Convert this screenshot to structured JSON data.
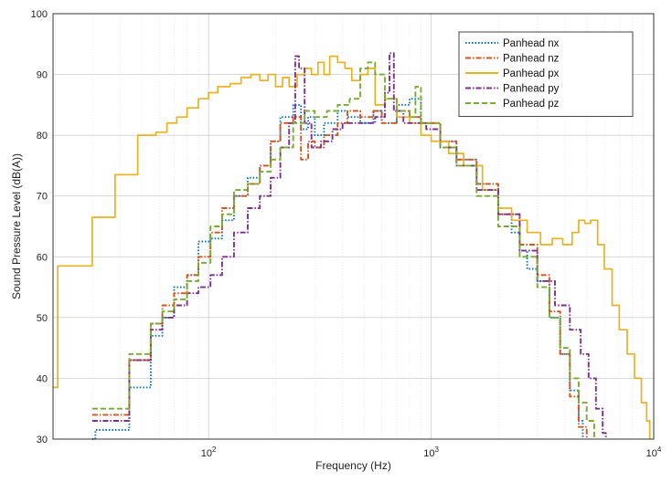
{
  "chart_data": {
    "type": "line",
    "title": "",
    "xlabel": "Frequency (Hz)",
    "ylabel": "Sound Pressure Level (dB(A))",
    "xscale": "log",
    "xlim": [
      20,
      10000
    ],
    "ylim": [
      30,
      100
    ],
    "grid": true,
    "legend_position": "top-right",
    "x_ticks": [
      {
        "value": 100,
        "base": "10",
        "exp": "2"
      },
      {
        "value": 1000,
        "base": "10",
        "exp": "3"
      },
      {
        "value": 10000,
        "base": "10",
        "exp": "4"
      }
    ],
    "y_ticks": [
      30,
      40,
      50,
      60,
      70,
      80,
      90,
      100
    ],
    "series": [
      {
        "name": "Panhead nx",
        "color": "#0072BD",
        "dash": "1.5,2",
        "points": [
          [
            30,
            30
          ],
          [
            31,
            31.5
          ],
          [
            44,
            38.5
          ],
          [
            55,
            47
          ],
          [
            62,
            50
          ],
          [
            70,
            55
          ],
          [
            80,
            57
          ],
          [
            90,
            62.5
          ],
          [
            102,
            63
          ],
          [
            115,
            66
          ],
          [
            130,
            70
          ],
          [
            150,
            73
          ],
          [
            170,
            75
          ],
          [
            190,
            79
          ],
          [
            210,
            83
          ],
          [
            240,
            85
          ],
          [
            260,
            81
          ],
          [
            280,
            83
          ],
          [
            300,
            80
          ],
          [
            330,
            82
          ],
          [
            380,
            84
          ],
          [
            420,
            83
          ],
          [
            480,
            82
          ],
          [
            550,
            84
          ],
          [
            600,
            82
          ],
          [
            700,
            85
          ],
          [
            800,
            86
          ],
          [
            900,
            82
          ],
          [
            1100,
            79
          ],
          [
            1300,
            76
          ],
          [
            1600,
            72
          ],
          [
            2000,
            67
          ],
          [
            2300,
            64
          ],
          [
            2500,
            61
          ],
          [
            2700,
            58
          ],
          [
            3000,
            56
          ],
          [
            3400,
            50
          ],
          [
            3800,
            44
          ],
          [
            4200,
            38
          ],
          [
            4600,
            33
          ],
          [
            4800,
            30
          ]
        ]
      },
      {
        "name": "Panhead nz",
        "color": "#D95319",
        "dash": "6,2,1.5,2",
        "points": [
          [
            30,
            34
          ],
          [
            31,
            34
          ],
          [
            44,
            43
          ],
          [
            55,
            49
          ],
          [
            62,
            52
          ],
          [
            70,
            54
          ],
          [
            80,
            57
          ],
          [
            90,
            60
          ],
          [
            102,
            64
          ],
          [
            115,
            68
          ],
          [
            130,
            70
          ],
          [
            150,
            72
          ],
          [
            170,
            75
          ],
          [
            190,
            79
          ],
          [
            210,
            82
          ],
          [
            240,
            83
          ],
          [
            260,
            76
          ],
          [
            280,
            79
          ],
          [
            300,
            78
          ],
          [
            330,
            80
          ],
          [
            380,
            82
          ],
          [
            420,
            84
          ],
          [
            480,
            83
          ],
          [
            550,
            84
          ],
          [
            600,
            82
          ],
          [
            700,
            84
          ],
          [
            800,
            83
          ],
          [
            900,
            82
          ],
          [
            1100,
            79
          ],
          [
            1300,
            76
          ],
          [
            1600,
            72
          ],
          [
            2000,
            67
          ],
          [
            2500,
            62
          ],
          [
            3000,
            57
          ],
          [
            3400,
            51
          ],
          [
            3800,
            44
          ],
          [
            4200,
            37
          ],
          [
            4600,
            32
          ],
          [
            5000,
            30
          ]
        ]
      },
      {
        "name": "Panhead px",
        "color": "#EDB120",
        "dash": "",
        "points": [
          [
            20,
            38.5
          ],
          [
            21,
            58.5
          ],
          [
            30,
            66.5
          ],
          [
            38,
            73.5
          ],
          [
            48,
            80
          ],
          [
            58,
            80.5
          ],
          [
            65,
            82
          ],
          [
            72,
            83
          ],
          [
            80,
            84.5
          ],
          [
            90,
            86
          ],
          [
            100,
            87
          ],
          [
            110,
            88
          ],
          [
            125,
            88.5
          ],
          [
            140,
            89.5
          ],
          [
            155,
            90
          ],
          [
            170,
            89
          ],
          [
            185,
            90
          ],
          [
            200,
            88
          ],
          [
            215,
            89.5
          ],
          [
            230,
            88
          ],
          [
            250,
            90
          ],
          [
            270,
            91
          ],
          [
            290,
            90
          ],
          [
            310,
            92
          ],
          [
            330,
            90
          ],
          [
            350,
            93
          ],
          [
            380,
            92
          ],
          [
            410,
            91
          ],
          [
            440,
            89
          ],
          [
            480,
            90
          ],
          [
            520,
            91
          ],
          [
            560,
            85
          ],
          [
            620,
            86
          ],
          [
            700,
            83
          ],
          [
            800,
            82
          ],
          [
            900,
            80
          ],
          [
            1000,
            79
          ],
          [
            1200,
            77
          ],
          [
            1400,
            75
          ],
          [
            1700,
            71
          ],
          [
            2000,
            68
          ],
          [
            2300,
            66
          ],
          [
            2700,
            64
          ],
          [
            3100,
            62
          ],
          [
            3500,
            63
          ],
          [
            3900,
            62
          ],
          [
            4300,
            64
          ],
          [
            4600,
            66
          ],
          [
            4900,
            65.5
          ],
          [
            5200,
            66
          ],
          [
            5600,
            62
          ],
          [
            6000,
            58
          ],
          [
            6500,
            52
          ],
          [
            7000,
            48
          ],
          [
            7600,
            44
          ],
          [
            8200,
            40
          ],
          [
            8800,
            36
          ],
          [
            9300,
            33
          ],
          [
            9600,
            30
          ]
        ]
      },
      {
        "name": "Panhead py",
        "color": "#7E2F8E",
        "dash": "6,2,1.5,2",
        "points": [
          [
            30,
            33
          ],
          [
            31,
            33
          ],
          [
            44,
            43
          ],
          [
            55,
            48
          ],
          [
            62,
            50
          ],
          [
            70,
            52
          ],
          [
            80,
            54
          ],
          [
            90,
            55
          ],
          [
            102,
            57
          ],
          [
            115,
            60
          ],
          [
            130,
            64
          ],
          [
            150,
            68
          ],
          [
            170,
            70
          ],
          [
            190,
            73
          ],
          [
            210,
            78
          ],
          [
            230,
            82
          ],
          [
            245,
            93
          ],
          [
            255,
            91
          ],
          [
            270,
            82
          ],
          [
            290,
            78
          ],
          [
            320,
            79
          ],
          [
            360,
            81
          ],
          [
            400,
            82
          ],
          [
            450,
            82
          ],
          [
            500,
            82
          ],
          [
            560,
            83
          ],
          [
            620,
            87
          ],
          [
            650,
            93.5
          ],
          [
            680,
            84
          ],
          [
            750,
            82
          ],
          [
            850,
            82
          ],
          [
            950,
            81
          ],
          [
            1100,
            78
          ],
          [
            1300,
            75
          ],
          [
            1600,
            71
          ],
          [
            2000,
            67
          ],
          [
            2500,
            61
          ],
          [
            3000,
            56
          ],
          [
            3600,
            52
          ],
          [
            4200,
            48
          ],
          [
            4700,
            44
          ],
          [
            5100,
            40
          ],
          [
            5500,
            35
          ],
          [
            5900,
            31
          ],
          [
            6100,
            30
          ]
        ]
      },
      {
        "name": "Panhead pz",
        "color": "#77AC30",
        "dash": "6,3",
        "points": [
          [
            30,
            35
          ],
          [
            31,
            35
          ],
          [
            44,
            44
          ],
          [
            55,
            49
          ],
          [
            62,
            51
          ],
          [
            70,
            53
          ],
          [
            80,
            56
          ],
          [
            90,
            59
          ],
          [
            102,
            65
          ],
          [
            115,
            67
          ],
          [
            130,
            71
          ],
          [
            150,
            72
          ],
          [
            170,
            74
          ],
          [
            190,
            76
          ],
          [
            210,
            78
          ],
          [
            240,
            82
          ],
          [
            270,
            84
          ],
          [
            300,
            83
          ],
          [
            340,
            84
          ],
          [
            380,
            85
          ],
          [
            430,
            86
          ],
          [
            480,
            91
          ],
          [
            520,
            92
          ],
          [
            560,
            90
          ],
          [
            620,
            86
          ],
          [
            700,
            84
          ],
          [
            800,
            83
          ],
          [
            850,
            88
          ],
          [
            900,
            82
          ],
          [
            1100,
            78
          ],
          [
            1300,
            75
          ],
          [
            1600,
            70
          ],
          [
            2000,
            65
          ],
          [
            2500,
            60
          ],
          [
            3000,
            55
          ],
          [
            3400,
            50
          ],
          [
            3800,
            45
          ],
          [
            4200,
            40
          ],
          [
            4600,
            36
          ],
          [
            5000,
            33
          ],
          [
            5400,
            30
          ]
        ]
      }
    ]
  }
}
